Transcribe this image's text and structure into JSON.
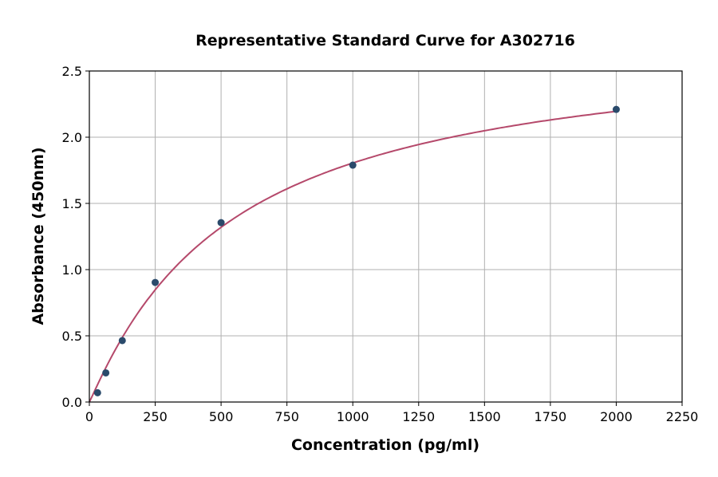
{
  "chart_data": {
    "type": "scatter",
    "title": "Representative Standard Curve for A302716",
    "xlabel": "Concentration (pg/ml)",
    "ylabel": "Absorbance (450nm)",
    "xlim": [
      0,
      2250
    ],
    "ylim": [
      0,
      2.5
    ],
    "xticks": [
      "0",
      "250",
      "500",
      "750",
      "1000",
      "1250",
      "1500",
      "1750",
      "2000",
      "2250"
    ],
    "yticks": [
      "0.0",
      "0.5",
      "1.0",
      "1.5",
      "2.0",
      "2.5"
    ],
    "grid": true,
    "series": [
      {
        "x": [
          31.25,
          62.5,
          125,
          250,
          500,
          1000,
          2000
        ],
        "y": [
          0.07,
          0.22,
          0.464,
          0.903,
          1.355,
          1.789,
          2.21
        ]
      }
    ],
    "fit_curve": true,
    "colors": {
      "points": "#2a4a6b",
      "curve": "#b5496b",
      "grid": "#b0b0b0"
    }
  }
}
